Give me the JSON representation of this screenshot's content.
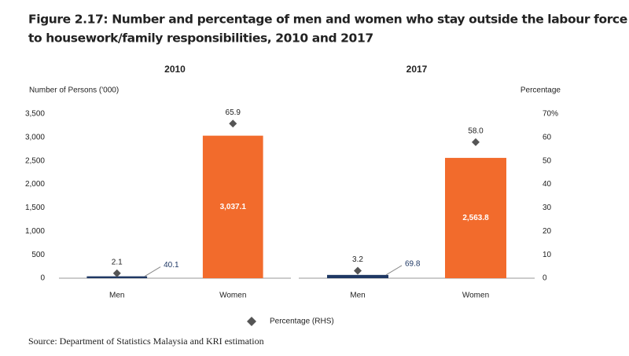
{
  "title": "Figure 2.17: Number and percentage of men and women who stay outside the labour force due to housework/family responsibilities, 2010 and 2017",
  "source": "Source: Department of Statistics Malaysia and KRI estimation",
  "chart_data": [
    {
      "type": "bar",
      "title": "2010",
      "y_label": "Number of Persons ('000)",
      "categories": [
        "Men",
        "Women"
      ],
      "series": [
        {
          "colors": [
            "#1f3864",
            "#f26b2c"
          ],
          "values": [
            40.1,
            3037.1
          ],
          "value_labels": [
            "40.1",
            "3,037.1"
          ]
        },
        {
          "name": "Percentage (RHS)",
          "type": "scatter",
          "axis": "y2",
          "color": "#555555",
          "values": [
            2.1,
            65.9
          ]
        }
      ],
      "ylim": [
        0,
        3500
      ],
      "yticks": [
        0,
        500,
        {
          "value": 1000,
          "label": "1,000"
        },
        {
          "value": 1500,
          "label": "1,500"
        },
        {
          "value": 2000,
          "label": "2,000"
        },
        {
          "value": 2500,
          "label": "2,500"
        },
        {
          "value": 3000,
          "label": "3,000"
        },
        {
          "value": 3500,
          "label": "3,500"
        }
      ],
      "y2lim": [
        0,
        70
      ]
    },
    {
      "type": "bar",
      "title": "2017",
      "y2_label": "Percentage",
      "categories": [
        "Men",
        "Women"
      ],
      "series": [
        {
          "colors": [
            "#1f3864",
            "#f26b2c"
          ],
          "values": [
            69.8,
            2563.8
          ],
          "value_labels": [
            "69.8",
            "2,563.8"
          ]
        },
        {
          "type": "scatter",
          "axis": "y2",
          "color": "#555555",
          "values": [
            3.2,
            58.0
          ],
          "value_labels": [
            "3.2",
            "58.0"
          ]
        }
      ],
      "ylim": [
        0,
        3500
      ],
      "y2lim": [
        0,
        70
      ],
      "y2ticks": [
        0,
        10,
        20,
        30,
        40,
        50,
        60,
        {
          "value": 70,
          "label": "70%"
        }
      ]
    }
  ]
}
